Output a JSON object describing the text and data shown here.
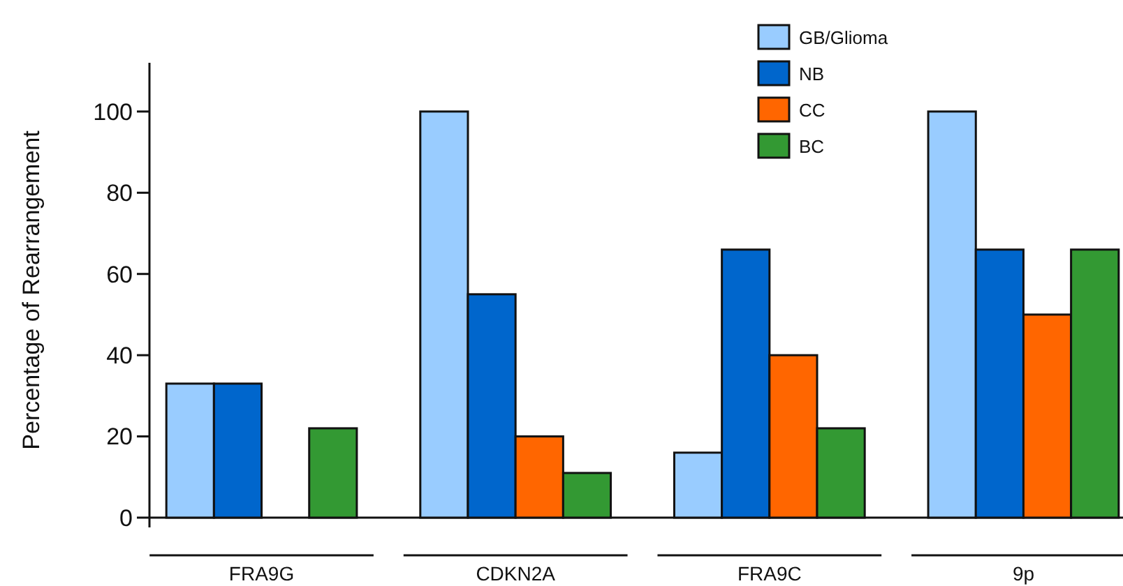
{
  "chart_data": {
    "type": "bar",
    "ylabel": "Percentage of Rearrangement",
    "categories": [
      "FRA9G",
      "CDKN2A",
      "FRA9C",
      "9p"
    ],
    "series": [
      {
        "name": "GB/Glioma",
        "color": "#99ccff",
        "values": [
          33,
          100,
          16,
          100
        ]
      },
      {
        "name": "NB",
        "color": "#0066cc",
        "values": [
          33,
          55,
          66,
          66
        ]
      },
      {
        "name": "CC",
        "color": "#ff6600",
        "values": [
          null,
          20,
          40,
          50
        ]
      },
      {
        "name": "BC",
        "color": "#339933",
        "values": [
          22,
          11,
          22,
          66
        ]
      }
    ],
    "ylim": [
      0,
      112
    ],
    "yticks": [
      0,
      20,
      40,
      60,
      80,
      100
    ],
    "grid": false,
    "legend": "top"
  }
}
